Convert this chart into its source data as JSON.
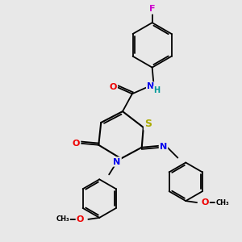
{
  "bg_color": "#e8e8e8",
  "atom_colors": {
    "C": "#000000",
    "N": "#0000ee",
    "O": "#ee0000",
    "S": "#aaaa00",
    "F": "#cc00cc",
    "H": "#009999"
  },
  "bond_color": "#000000",
  "bond_lw": 1.3,
  "font_size": 8,
  "fig_size": [
    3.0,
    3.0
  ],
  "dpi": 100
}
